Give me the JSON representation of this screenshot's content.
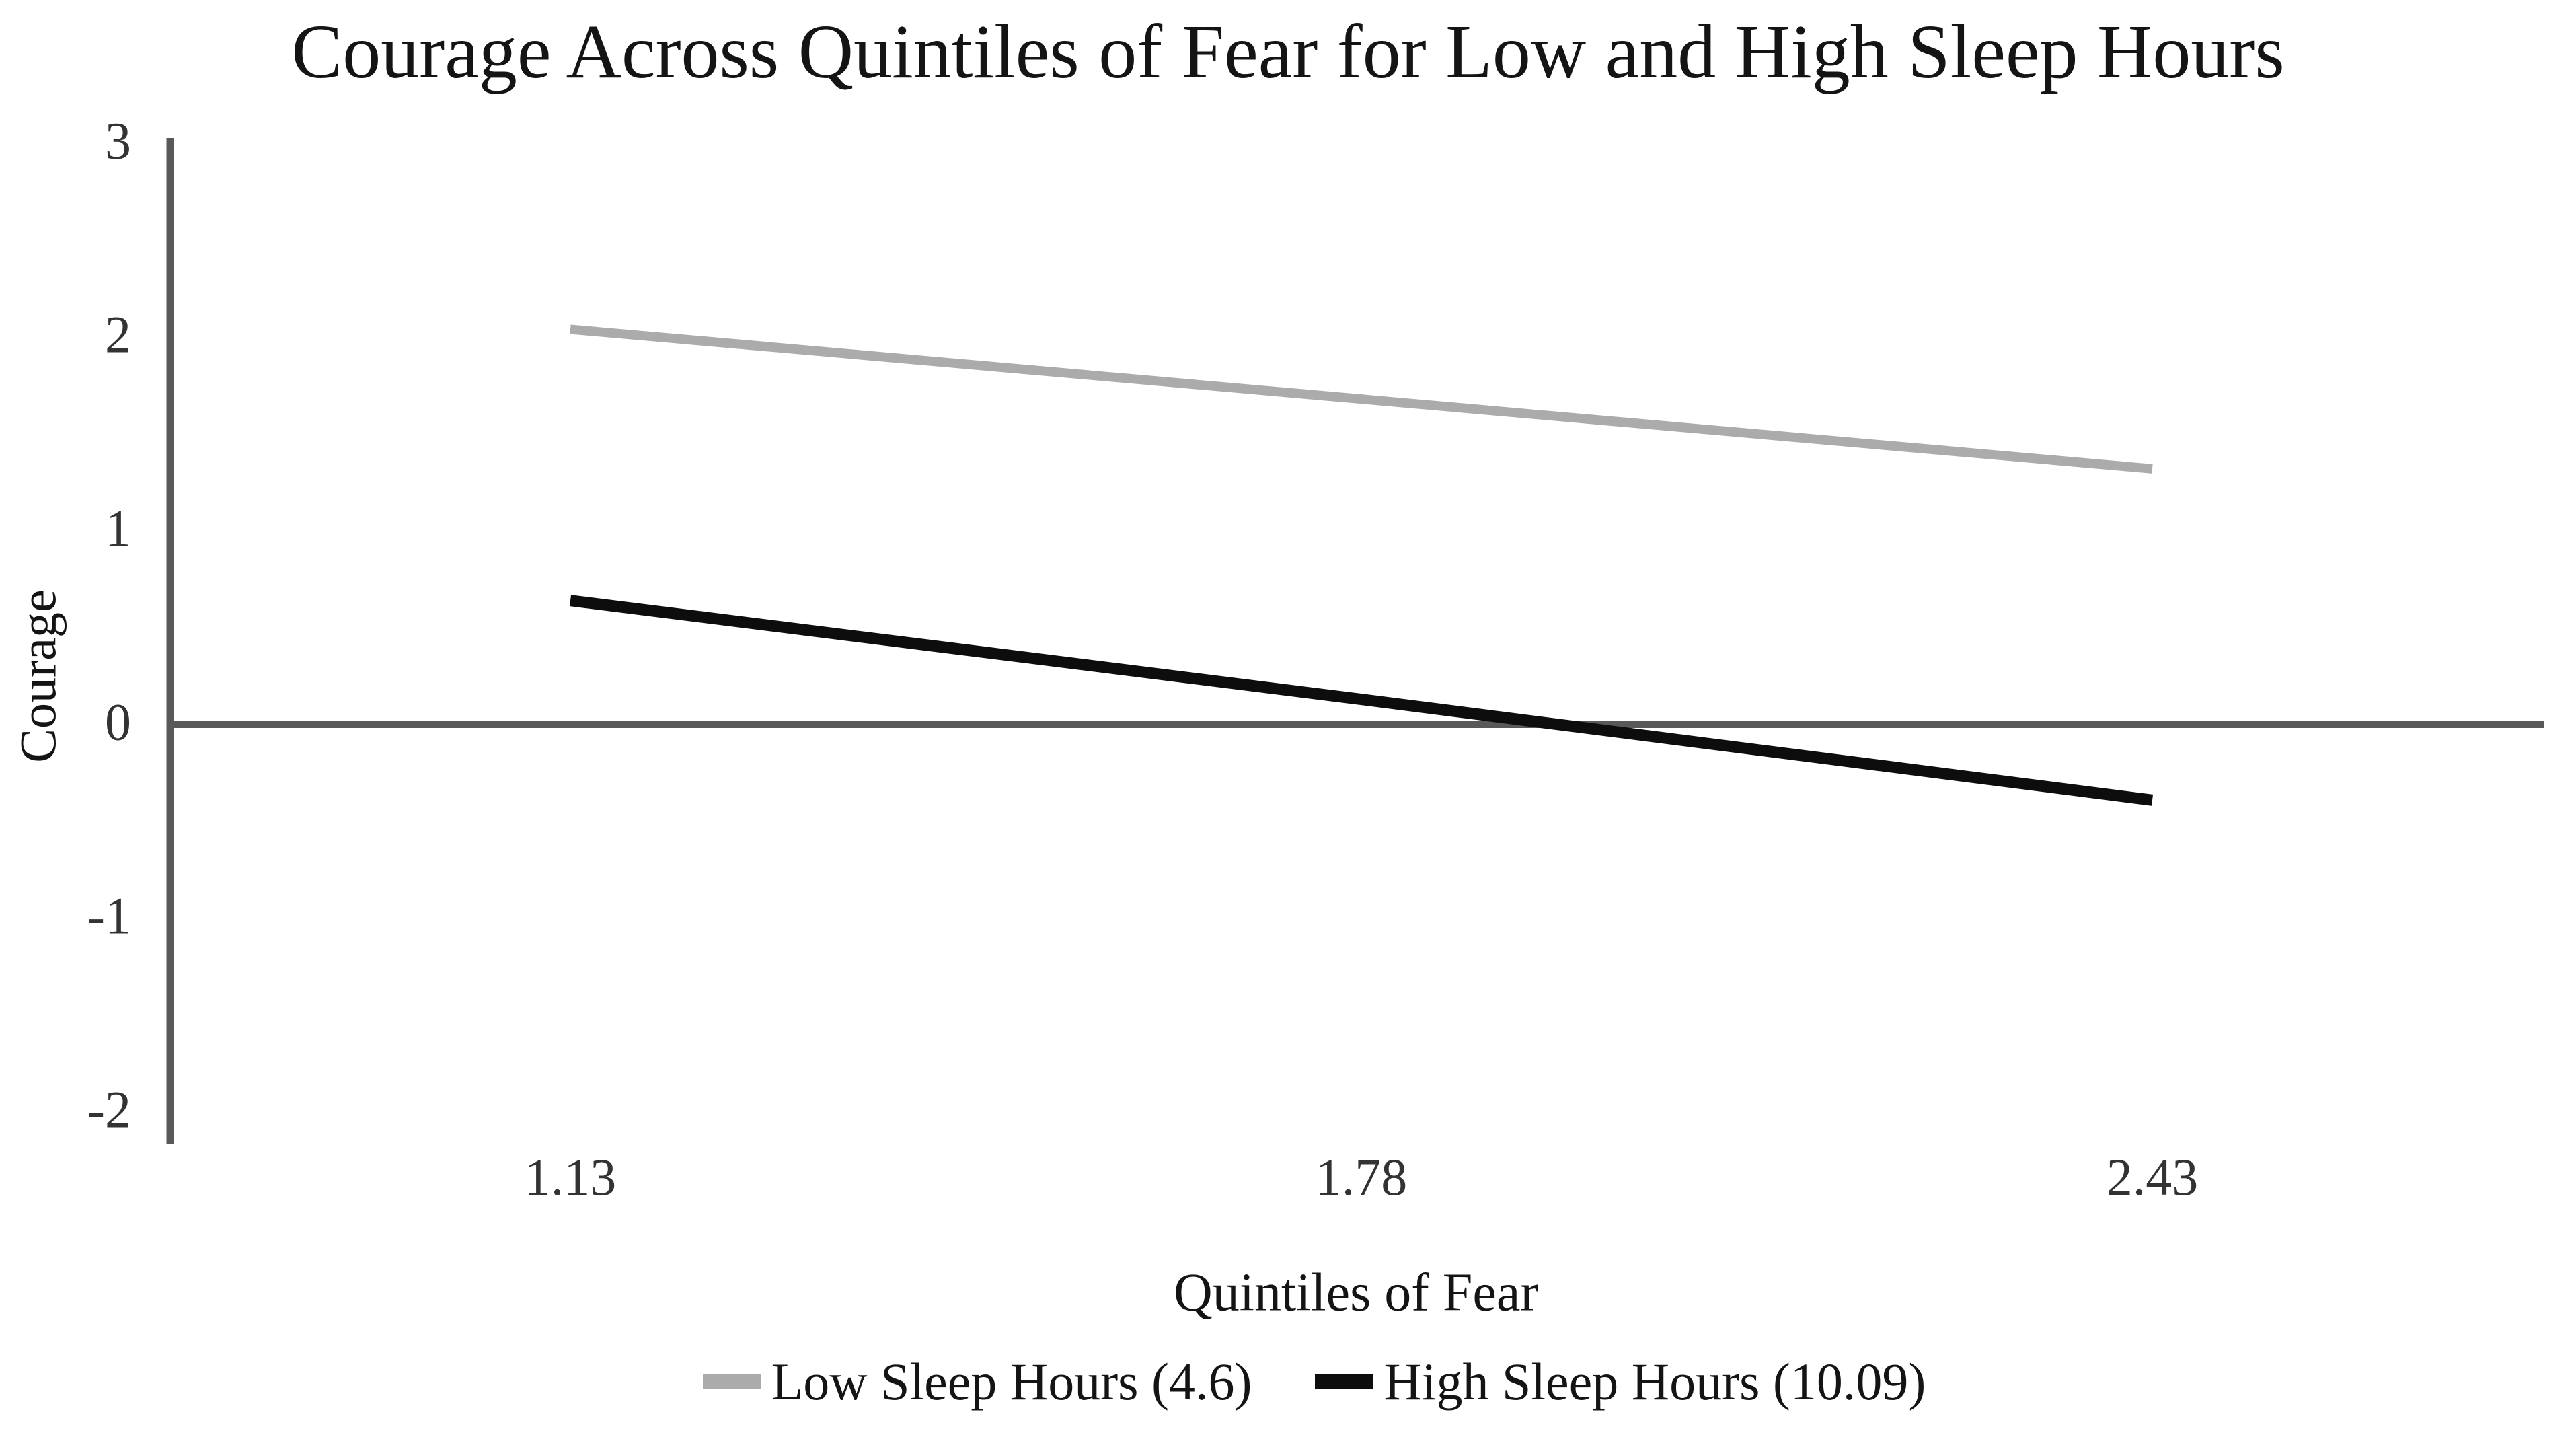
{
  "title": "Courage Across Quintiles of Fear for Low and High Sleep Hours",
  "chart_data": {
    "type": "line",
    "title": "Courage Across Quintiles of Fear for Low and High Sleep Hours",
    "xlabel": "Quintiles of Fear",
    "ylabel": "Courage",
    "x": [
      1.13,
      1.78,
      2.43
    ],
    "x_tick_labels": [
      "1.13",
      "1.78",
      "2.43"
    ],
    "y_ticks": [
      3,
      2,
      1,
      0,
      -1,
      -2
    ],
    "y_tick_labels": [
      "3",
      "2",
      "1",
      "0",
      "-1",
      "-2"
    ],
    "ylim": [
      -2,
      3
    ],
    "baseline_y": 0,
    "grid": "off",
    "legend_position": "bottom-center",
    "series": [
      {
        "name": "Low Sleep Hours (4.6)",
        "values": [
          2.04,
          1.68,
          1.32
        ],
        "color": "#ABABAB",
        "stroke_width": 14
      },
      {
        "name": "High Sleep Hours (10.09)",
        "values": [
          0.64,
          0.13,
          -0.39
        ],
        "color": "#0D0D0D",
        "stroke_width": 17
      }
    ]
  },
  "colors": {
    "axis_line": "#595959",
    "baseline": "#595959",
    "tick_text": "#333333",
    "text": "#141414",
    "background": "#FFFFFF"
  }
}
